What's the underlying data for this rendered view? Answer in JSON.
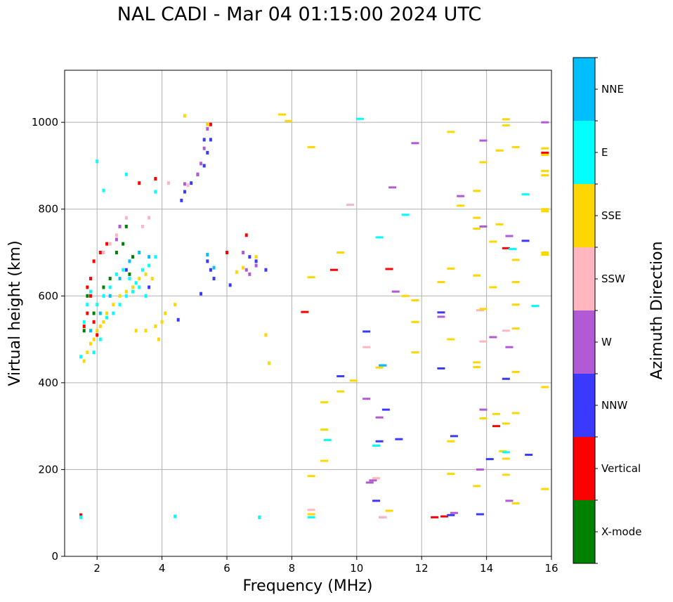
{
  "title": "NAL CADI - Mar 04 01:15:00 2024 UTC",
  "chart_data": {
    "type": "scatter",
    "title": "NAL CADI - Mar 04 01:15:00 2024 UTC",
    "xlabel": "Frequency (MHz)",
    "ylabel": "Virtual height (km)",
    "xlim": [
      1,
      16
    ],
    "ylim": [
      0,
      1120
    ],
    "xticks": [
      "2",
      "4",
      "6",
      "8",
      "10",
      "12",
      "14",
      "16"
    ],
    "yticks": [
      "0",
      "200",
      "400",
      "600",
      "800",
      "1000"
    ],
    "grid": true,
    "colorbar": {
      "label": "Azimuth Direction",
      "categories": [
        "X-mode",
        "Vertical",
        "NNW",
        "W",
        "SSW",
        "SSE",
        "E",
        "NNE"
      ],
      "colors": [
        "#008000",
        "#ff0000",
        "#3a3aff",
        "#b25ad6",
        "#ffb6c1",
        "#ffd700",
        "#00ffff",
        "#00bfff"
      ]
    },
    "series": [
      {
        "name": "X-mode",
        "points": [
          [
            1.6,
            520
          ],
          [
            1.9,
            560
          ],
          [
            2.2,
            620
          ],
          [
            2.6,
            700
          ],
          [
            2.8,
            720
          ],
          [
            2.9,
            760
          ],
          [
            3.1,
            690
          ],
          [
            1.7,
            600
          ],
          [
            2.4,
            640
          ],
          [
            3.0,
            650
          ]
        ]
      },
      {
        "name": "Vertical",
        "points": [
          [
            1.5,
            95
          ],
          [
            1.6,
            530
          ],
          [
            1.7,
            560
          ],
          [
            1.8,
            600
          ],
          [
            1.8,
            640
          ],
          [
            1.9,
            680
          ],
          [
            2.0,
            510
          ],
          [
            1.7,
            620
          ],
          [
            1.9,
            540
          ],
          [
            2.1,
            700
          ],
          [
            2.3,
            720
          ],
          [
            3.3,
            860
          ],
          [
            3.8,
            870
          ],
          [
            5.5,
            995
          ],
          [
            6.0,
            700
          ],
          [
            6.6,
            740
          ],
          [
            8.4,
            563
          ],
          [
            9.3,
            660
          ],
          [
            11.0,
            662
          ],
          [
            12.4,
            90
          ],
          [
            12.7,
            92
          ],
          [
            14.3,
            300
          ],
          [
            14.6,
            710
          ],
          [
            15.8,
            930
          ]
        ]
      },
      {
        "name": "NNW",
        "points": [
          [
            4.6,
            820
          ],
          [
            4.7,
            840
          ],
          [
            4.9,
            860
          ],
          [
            5.1,
            880
          ],
          [
            5.3,
            900
          ],
          [
            5.4,
            930
          ],
          [
            5.5,
            960
          ],
          [
            5.3,
            960
          ],
          [
            5.4,
            680
          ],
          [
            5.5,
            660
          ],
          [
            5.6,
            640
          ],
          [
            6.1,
            625
          ],
          [
            5.2,
            605
          ],
          [
            4.5,
            545
          ],
          [
            3.6,
            620
          ],
          [
            2.9,
            660
          ],
          [
            6.7,
            690
          ],
          [
            6.9,
            680
          ],
          [
            7.2,
            660
          ],
          [
            9.5,
            415
          ],
          [
            10.3,
            518
          ],
          [
            10.8,
            440
          ],
          [
            10.9,
            338
          ],
          [
            10.7,
            265
          ],
          [
            10.6,
            128
          ],
          [
            10.8,
            90
          ],
          [
            11.3,
            270
          ],
          [
            12.6,
            562
          ],
          [
            12.6,
            433
          ],
          [
            13.0,
            277
          ],
          [
            13.8,
            97
          ],
          [
            14.1,
            224
          ],
          [
            15.2,
            727
          ],
          [
            15.3,
            234
          ],
          [
            14.6,
            409
          ],
          [
            12.9,
            95
          ]
        ]
      },
      {
        "name": "W",
        "points": [
          [
            4.7,
            858
          ],
          [
            5.1,
            880
          ],
          [
            5.2,
            905
          ],
          [
            5.3,
            940
          ],
          [
            5.4,
            985
          ],
          [
            6.6,
            660
          ],
          [
            6.7,
            650
          ],
          [
            6.5,
            700
          ],
          [
            6.9,
            670
          ],
          [
            2.6,
            730
          ],
          [
            2.7,
            760
          ],
          [
            10.3,
            363
          ],
          [
            10.4,
            170
          ],
          [
            10.5,
            175
          ],
          [
            10.7,
            320
          ],
          [
            11.2,
            610
          ],
          [
            11.1,
            850
          ],
          [
            11.8,
            952
          ],
          [
            12.6,
            552
          ],
          [
            13.0,
            100
          ],
          [
            13.2,
            830
          ],
          [
            13.8,
            200
          ],
          [
            13.9,
            958
          ],
          [
            13.9,
            760
          ],
          [
            13.9,
            338
          ],
          [
            14.2,
            505
          ],
          [
            14.7,
            482
          ],
          [
            14.7,
            128
          ],
          [
            14.7,
            738
          ],
          [
            15.8,
            1000
          ]
        ]
      },
      {
        "name": "SSW",
        "points": [
          [
            2.2,
            700
          ],
          [
            2.4,
            720
          ],
          [
            2.6,
            740
          ],
          [
            2.9,
            780
          ],
          [
            3.4,
            760
          ],
          [
            3.6,
            780
          ],
          [
            8.6,
            107
          ],
          [
            9.8,
            810
          ],
          [
            10.3,
            482
          ],
          [
            10.6,
            180
          ],
          [
            10.8,
            90
          ],
          [
            13.8,
            567
          ],
          [
            14.6,
            520
          ],
          [
            13.9,
            495
          ],
          [
            4.2,
            860
          ],
          [
            4.8,
            855
          ]
        ]
      },
      {
        "name": "SSE",
        "points": [
          [
            1.6,
            450
          ],
          [
            1.7,
            470
          ],
          [
            1.8,
            490
          ],
          [
            1.9,
            500
          ],
          [
            2.0,
            520
          ],
          [
            2.1,
            530
          ],
          [
            2.2,
            540
          ],
          [
            2.3,
            560
          ],
          [
            2.5,
            580
          ],
          [
            2.7,
            600
          ],
          [
            2.9,
            610
          ],
          [
            3.1,
            620
          ],
          [
            3.3,
            640
          ],
          [
            3.5,
            650
          ],
          [
            3.7,
            640
          ],
          [
            3.2,
            520
          ],
          [
            3.5,
            520
          ],
          [
            3.8,
            530
          ],
          [
            4.0,
            540
          ],
          [
            4.1,
            560
          ],
          [
            4.4,
            580
          ],
          [
            3.9,
            500
          ],
          [
            4.7,
            1015
          ],
          [
            5.4,
            995
          ],
          [
            6.3,
            655
          ],
          [
            6.5,
            665
          ],
          [
            6.9,
            690
          ],
          [
            7.2,
            510
          ],
          [
            7.3,
            445
          ],
          [
            7.7,
            1018
          ],
          [
            7.9,
            1003
          ],
          [
            8.6,
            943
          ],
          [
            8.6,
            643
          ],
          [
            8.6,
            185
          ],
          [
            8.6,
            97
          ],
          [
            9.0,
            355
          ],
          [
            9.0,
            292
          ],
          [
            9.0,
            220
          ],
          [
            9.5,
            700
          ],
          [
            9.5,
            380
          ],
          [
            9.9,
            405
          ],
          [
            10.7,
            435
          ],
          [
            11.0,
            105
          ],
          [
            11.5,
            600
          ],
          [
            11.8,
            590
          ],
          [
            11.8,
            540
          ],
          [
            11.8,
            470
          ],
          [
            12.6,
            632
          ],
          [
            12.9,
            978
          ],
          [
            12.9,
            663
          ],
          [
            12.9,
            500
          ],
          [
            12.9,
            265
          ],
          [
            12.9,
            190
          ],
          [
            13.2,
            808
          ],
          [
            13.7,
            842
          ],
          [
            13.7,
            780
          ],
          [
            13.7,
            755
          ],
          [
            13.7,
            647
          ],
          [
            13.7,
            447
          ],
          [
            13.7,
            436
          ],
          [
            13.7,
            162
          ],
          [
            13.9,
            908
          ],
          [
            13.9,
            570
          ],
          [
            13.9,
            318
          ],
          [
            14.2,
            725
          ],
          [
            14.2,
            620
          ],
          [
            14.3,
            328
          ],
          [
            14.4,
            935
          ],
          [
            14.4,
            765
          ],
          [
            14.5,
            242
          ],
          [
            14.6,
            1007
          ],
          [
            14.6,
            993
          ],
          [
            14.6,
            306
          ],
          [
            14.6,
            188
          ],
          [
            14.6,
            225
          ],
          [
            14.9,
            943
          ],
          [
            14.9,
            683
          ],
          [
            14.9,
            632
          ],
          [
            14.9,
            580
          ],
          [
            14.9,
            525
          ],
          [
            14.9,
            425
          ],
          [
            14.9,
            330
          ],
          [
            14.9,
            122
          ],
          [
            15.8,
            940
          ],
          [
            15.8,
            925
          ],
          [
            15.8,
            888
          ],
          [
            15.8,
            878
          ],
          [
            15.8,
            800
          ],
          [
            15.8,
            795
          ],
          [
            15.8,
            700
          ],
          [
            15.8,
            695
          ],
          [
            15.8,
            390
          ],
          [
            15.8,
            155
          ]
        ]
      },
      {
        "name": "E",
        "points": [
          [
            1.5,
            460
          ],
          [
            1.6,
            540
          ],
          [
            1.7,
            580
          ],
          [
            1.8,
            610
          ],
          [
            2.0,
            580
          ],
          [
            2.2,
            600
          ],
          [
            2.4,
            620
          ],
          [
            2.6,
            650
          ],
          [
            2.8,
            660
          ],
          [
            3.0,
            640
          ],
          [
            3.2,
            630
          ],
          [
            3.4,
            660
          ],
          [
            3.6,
            670
          ],
          [
            3.8,
            690
          ],
          [
            1.9,
            470
          ],
          [
            2.1,
            500
          ],
          [
            2.3,
            550
          ],
          [
            2.5,
            560
          ],
          [
            2.7,
            580
          ],
          [
            2.9,
            600
          ],
          [
            3.1,
            610
          ],
          [
            3.3,
            620
          ],
          [
            3.5,
            600
          ],
          [
            1.5,
            90
          ],
          [
            2.0,
            910
          ],
          [
            2.2,
            843
          ],
          [
            2.9,
            880
          ],
          [
            3.8,
            840
          ],
          [
            4.4,
            92
          ],
          [
            7.0,
            90
          ],
          [
            8.6,
            90
          ],
          [
            9.1,
            268
          ],
          [
            10.1,
            1008
          ],
          [
            10.6,
            255
          ],
          [
            10.7,
            735
          ],
          [
            11.5,
            787
          ],
          [
            14.8,
            708
          ],
          [
            15.2,
            834
          ],
          [
            15.5,
            577
          ],
          [
            14.6,
            240
          ]
        ]
      },
      {
        "name": "NNE",
        "points": [
          [
            1.8,
            520
          ],
          [
            2.1,
            560
          ],
          [
            2.4,
            600
          ],
          [
            2.7,
            640
          ],
          [
            3.0,
            680
          ],
          [
            3.3,
            700
          ],
          [
            3.6,
            690
          ],
          [
            5.4,
            695
          ],
          [
            5.6,
            665
          ],
          [
            10.8,
            440
          ]
        ]
      }
    ]
  }
}
